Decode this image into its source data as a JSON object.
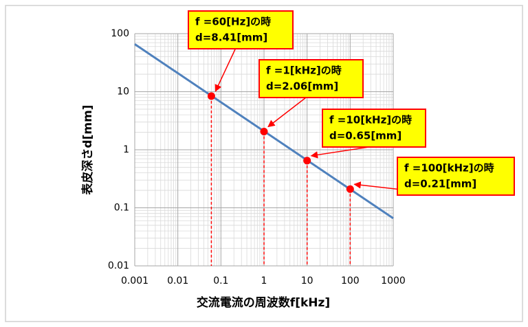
{
  "chart_data": {
    "type": "line",
    "x_label": "交流電流の周波数f[kHz]",
    "y_label": "表皮深さd[mm]",
    "xlog": true,
    "ylog": true,
    "grid": true,
    "minor_grid": true,
    "xlim": [
      0.001,
      1000
    ],
    "xticks": [
      0.001,
      0.01,
      0.1,
      1,
      10,
      100,
      1000
    ],
    "ylim": [
      0.01,
      100
    ],
    "yticks": [
      0.01,
      0.1,
      1,
      10,
      100
    ],
    "series": [
      {
        "color": "#4f81bd",
        "x": [
          0.001,
          1000
        ],
        "values": [
          66,
          0.066
        ]
      },
      {
        "color": "#ff0000",
        "x": [
          0.06,
          1,
          10,
          100
        ],
        "values": [
          8.41,
          2.06,
          0.65,
          0.21
        ]
      }
    ],
    "annotations": [
      {
        "lines": [
          "f =60[Hz]の時",
          "d=8.41[mm]"
        ]
      },
      {
        "lines": [
          "f =1[kHz]の時",
          "d=2.06[mm]"
        ]
      },
      {
        "lines": [
          "f =10[kHz]の時",
          "d=0.65[mm]"
        ]
      },
      {
        "lines": [
          "f =100[kHz]の時",
          "d=0.21[mm]"
        ]
      }
    ]
  }
}
